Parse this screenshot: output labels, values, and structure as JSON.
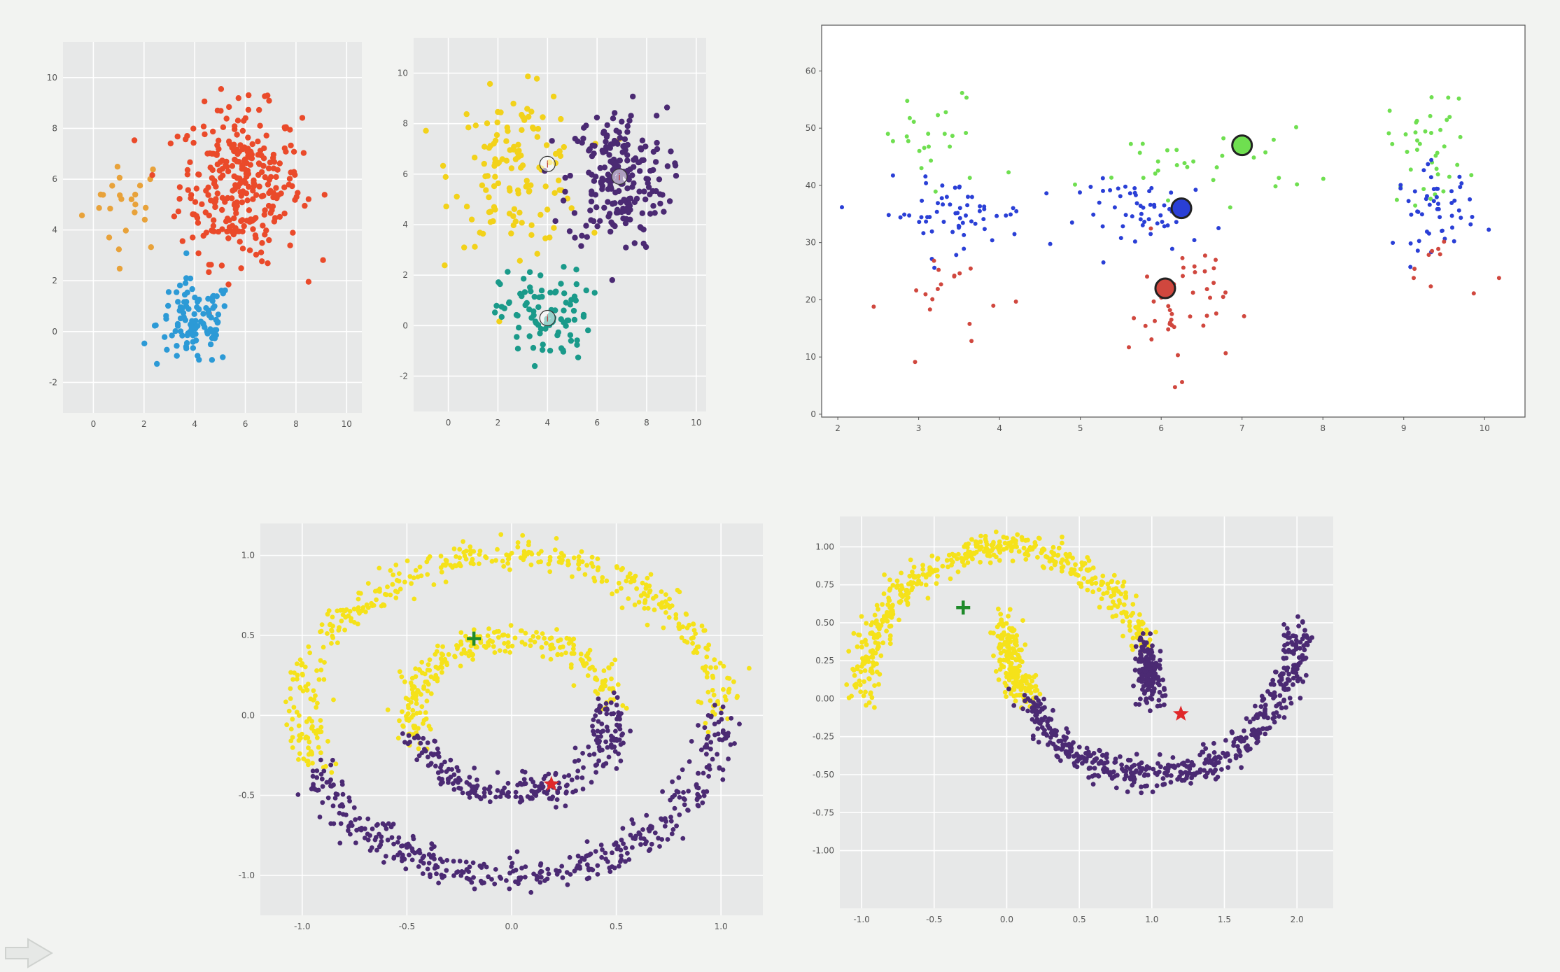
{
  "colors": {
    "orange": "#e8a23a",
    "red": "#ea4a2a",
    "blue": "#2c9ad6",
    "gold": "#f2d21a",
    "purple": "#4b2a73",
    "teal": "#1a9a8a",
    "green": "#6fdf50",
    "deep_blue": "#2a3fd6",
    "brick": "#d0473e",
    "yellow": "#f5e21a",
    "panel_gray": "#e7e8e8",
    "grid_white": "#ffffff"
  },
  "icons": {
    "next": "arrow-right-icon"
  },
  "chart_data": [
    {
      "type": "scatter",
      "title": "",
      "xlabel": "",
      "ylabel": "",
      "xlim": [
        -1.2,
        10.6
      ],
      "ylim": [
        -3.2,
        11.4
      ],
      "x_ticks": [
        "0",
        "2",
        "4",
        "6",
        "8",
        "10"
      ],
      "y_ticks": [
        "-2",
        "0",
        "2",
        "4",
        "6",
        "8",
        "10"
      ],
      "x_tick_values": [
        0,
        2,
        4,
        6,
        8,
        10
      ],
      "y_tick_values": [
        -2,
        0,
        2,
        4,
        6,
        8,
        10
      ],
      "grid": true,
      "series": [
        {
          "color_key": "orange",
          "cluster": {
            "cx": 1.3,
            "cy": 5.1,
            "sx": 0.85,
            "sy": 1.0,
            "n": 24
          }
        },
        {
          "color_key": "red",
          "cluster": {
            "cx": 5.8,
            "cy": 5.8,
            "sx": 1.2,
            "sy": 1.5,
            "n": 300
          }
        },
        {
          "color_key": "blue",
          "cluster": {
            "cx": 4.0,
            "cy": 0.3,
            "sx": 0.75,
            "sy": 0.85,
            "n": 110
          }
        }
      ]
    },
    {
      "type": "scatter",
      "title": "",
      "xlabel": "",
      "ylabel": "",
      "xlim": [
        -1.4,
        10.4
      ],
      "ylim": [
        -3.4,
        11.4
      ],
      "x_ticks": [
        "0",
        "2",
        "4",
        "6",
        "8",
        "10"
      ],
      "y_ticks": [
        "-2",
        "0",
        "2",
        "4",
        "6",
        "8",
        "10"
      ],
      "x_tick_values": [
        0,
        2,
        4,
        6,
        8,
        10
      ],
      "y_tick_values": [
        -2,
        0,
        2,
        4,
        6,
        8,
        10
      ],
      "grid": true,
      "series": [
        {
          "color_key": "gold",
          "cluster": {
            "cx": 2.8,
            "cy": 6.2,
            "sx": 1.3,
            "sy": 1.5,
            "n": 130
          }
        },
        {
          "color_key": "purple",
          "cluster": {
            "cx": 6.8,
            "cy": 5.8,
            "sx": 1.0,
            "sy": 1.4,
            "n": 220
          }
        },
        {
          "color_key": "teal",
          "cluster": {
            "cx": 3.9,
            "cy": 0.4,
            "sx": 0.9,
            "sy": 0.9,
            "n": 95
          }
        }
      ],
      "centers": [
        {
          "x": 4.0,
          "y": 6.4
        },
        {
          "x": 6.9,
          "y": 5.9
        },
        {
          "x": 4.0,
          "y": 0.3
        }
      ]
    },
    {
      "type": "scatter",
      "title": "",
      "xlabel": "",
      "ylabel": "",
      "xlim": [
        1.8,
        10.5
      ],
      "ylim": [
        -0.5,
        68
      ],
      "x_ticks": [
        "2",
        "3",
        "4",
        "5",
        "6",
        "7",
        "8",
        "9",
        "10"
      ],
      "y_ticks": [
        "0",
        "10",
        "20",
        "30",
        "40",
        "50",
        "60"
      ],
      "x_tick_values": [
        2,
        3,
        4,
        5,
        6,
        7,
        8,
        9,
        10
      ],
      "y_tick_values": [
        0,
        10,
        20,
        30,
        40,
        50,
        60
      ],
      "grid": false,
      "series": [
        {
          "color_key": "green",
          "clusters": [
            {
              "cx": 3.2,
              "cy": 47,
              "sx": 0.4,
              "sy": 5,
              "n": 24
            },
            {
              "cx": 6.5,
              "cy": 44,
              "sx": 0.7,
              "sy": 3,
              "n": 30
            },
            {
              "cx": 9.3,
              "cy": 47,
              "sx": 0.25,
              "sy": 5,
              "n": 38
            }
          ]
        },
        {
          "color_key": "deep_blue",
          "clusters": [
            {
              "cx": 3.4,
              "cy": 35,
              "sx": 0.45,
              "sy": 3,
              "n": 60
            },
            {
              "cx": 5.9,
              "cy": 35,
              "sx": 0.45,
              "sy": 3,
              "n": 55
            },
            {
              "cx": 9.4,
              "cy": 36,
              "sx": 0.25,
              "sy": 3.5,
              "n": 50
            }
          ]
        },
        {
          "color_key": "brick",
          "clusters": [
            {
              "cx": 3.4,
              "cy": 20,
              "sx": 0.4,
              "sy": 5,
              "n": 18
            },
            {
              "cx": 6.2,
              "cy": 19,
              "sx": 0.3,
              "sy": 6,
              "n": 45
            },
            {
              "cx": 9.5,
              "cy": 26,
              "sx": 0.25,
              "sy": 3,
              "n": 10
            }
          ]
        }
      ],
      "centroids": [
        {
          "x": 7.0,
          "y": 47,
          "color_key": "green"
        },
        {
          "x": 6.25,
          "y": 36,
          "color_key": "deep_blue"
        },
        {
          "x": 6.05,
          "y": 22,
          "color_key": "brick"
        }
      ]
    },
    {
      "type": "scatter",
      "title": "",
      "xlabel": "",
      "ylabel": "",
      "xlim": [
        -1.2,
        1.2
      ],
      "ylim": [
        -1.25,
        1.2
      ],
      "x_ticks": [
        "-1.0",
        "-0.5",
        "0.0",
        "0.5",
        "1.0"
      ],
      "y_ticks": [
        "-1.0",
        "-0.5",
        "0.0",
        "0.5",
        "1.0"
      ],
      "x_tick_values": [
        -1.0,
        -0.5,
        0.0,
        0.5,
        1.0
      ],
      "y_tick_values": [
        -1.0,
        -0.5,
        0.0,
        0.5,
        1.0
      ],
      "grid": true,
      "series": [
        {
          "color_key": "yellow",
          "rings": [
            {
              "r": 1.0,
              "from_deg": 0,
              "to_deg": 200,
              "n": 420,
              "noise": 0.05
            },
            {
              "r": 0.48,
              "from_deg": 10,
              "to_deg": 200,
              "n": 260,
              "noise": 0.05
            }
          ]
        },
        {
          "color_key": "purple",
          "rings": [
            {
              "r": 1.0,
              "from_deg": 200,
              "to_deg": 360,
              "n": 400,
              "noise": 0.05
            },
            {
              "r": 0.48,
              "from_deg": 200,
              "to_deg": 370,
              "n": 260,
              "noise": 0.05
            }
          ]
        }
      ],
      "markers": [
        {
          "shape": "plus",
          "color": "#1f8a2a",
          "x": -0.18,
          "y": 0.48
        },
        {
          "shape": "star",
          "color": "#e0282a",
          "x": 0.19,
          "y": -0.43
        }
      ]
    },
    {
      "type": "scatter",
      "title": "",
      "xlabel": "",
      "ylabel": "",
      "xlim": [
        -1.15,
        2.25
      ],
      "ylim": [
        -1.38,
        1.2
      ],
      "x_ticks": [
        "-1.0",
        "-0.5",
        "0.0",
        "0.5",
        "1.0",
        "1.5",
        "2.0"
      ],
      "y_ticks": [
        "-1.00",
        "-0.75",
        "-0.50",
        "-0.25",
        "0.00",
        "0.25",
        "0.50",
        "0.75",
        "1.00"
      ],
      "x_tick_values": [
        -1.0,
        -0.5,
        0.0,
        0.5,
        1.0,
        1.5,
        2.0
      ],
      "y_tick_values": [
        -1.0,
        -0.75,
        -0.5,
        -0.25,
        0.0,
        0.25,
        0.5,
        0.75,
        1.0
      ],
      "grid": true,
      "series": [
        {
          "color_key": "yellow",
          "moons": [
            {
              "cx": 0.0,
              "cy": 0.0,
              "from_deg": 20,
              "to_deg": 180,
              "n": 480,
              "noise": 0.05
            },
            {
              "cx": 1.0,
              "cy": 0.5,
              "from_deg": 180,
              "to_deg": 210,
              "n": 200,
              "noise": 0.05
            }
          ]
        },
        {
          "color_key": "purple",
          "moons": [
            {
              "cx": 0.0,
              "cy": 0.0,
              "from_deg": 0,
              "to_deg": 20,
              "n": 150,
              "noise": 0.05
            },
            {
              "cx": 1.0,
              "cy": 0.5,
              "from_deg": 210,
              "to_deg": 360,
              "n": 500,
              "noise": 0.05
            }
          ]
        }
      ],
      "markers": [
        {
          "shape": "plus",
          "color": "#1f8a2a",
          "x": -0.3,
          "y": 0.6
        },
        {
          "shape": "star",
          "color": "#e0282a",
          "x": 1.2,
          "y": -0.1
        }
      ]
    }
  ]
}
